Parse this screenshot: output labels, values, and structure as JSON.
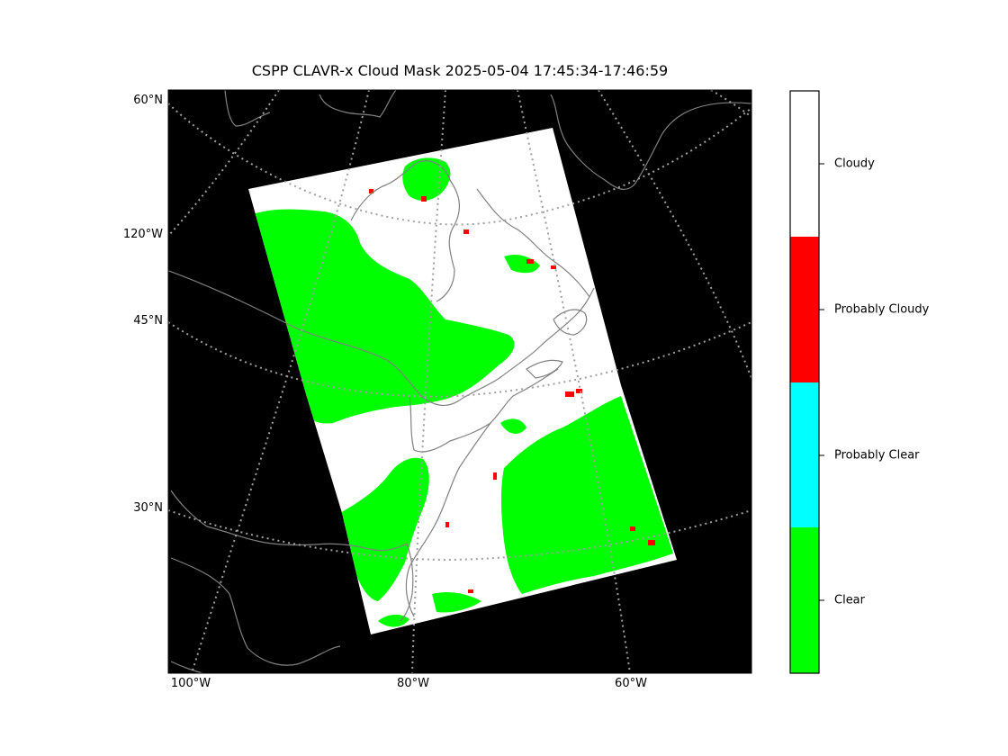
{
  "title": "CSPP CLAVR-x Cloud Mask 2025-05-04 17:45:34-17:46:59",
  "lat_labels": [
    "60°N",
    "120°W",
    "45°N",
    "30°N"
  ],
  "lon_labels": [
    "100°W",
    "80°W",
    "60°W"
  ],
  "colorbar": {
    "categories": [
      {
        "label": "Cloudy",
        "color": "#ffffff"
      },
      {
        "label": "Probably Cloudy",
        "color": "#ff0000"
      },
      {
        "label": "Probably Clear",
        "color": "#00ffff"
      },
      {
        "label": "Clear",
        "color": "#00ff00"
      }
    ]
  },
  "colors": {
    "background": "#000000",
    "coastline": "#808080",
    "gridline": "#a0a0a0",
    "cloudy": "#ffffff",
    "clear": "#00ff00",
    "probably_cloudy": "#ff0000"
  }
}
